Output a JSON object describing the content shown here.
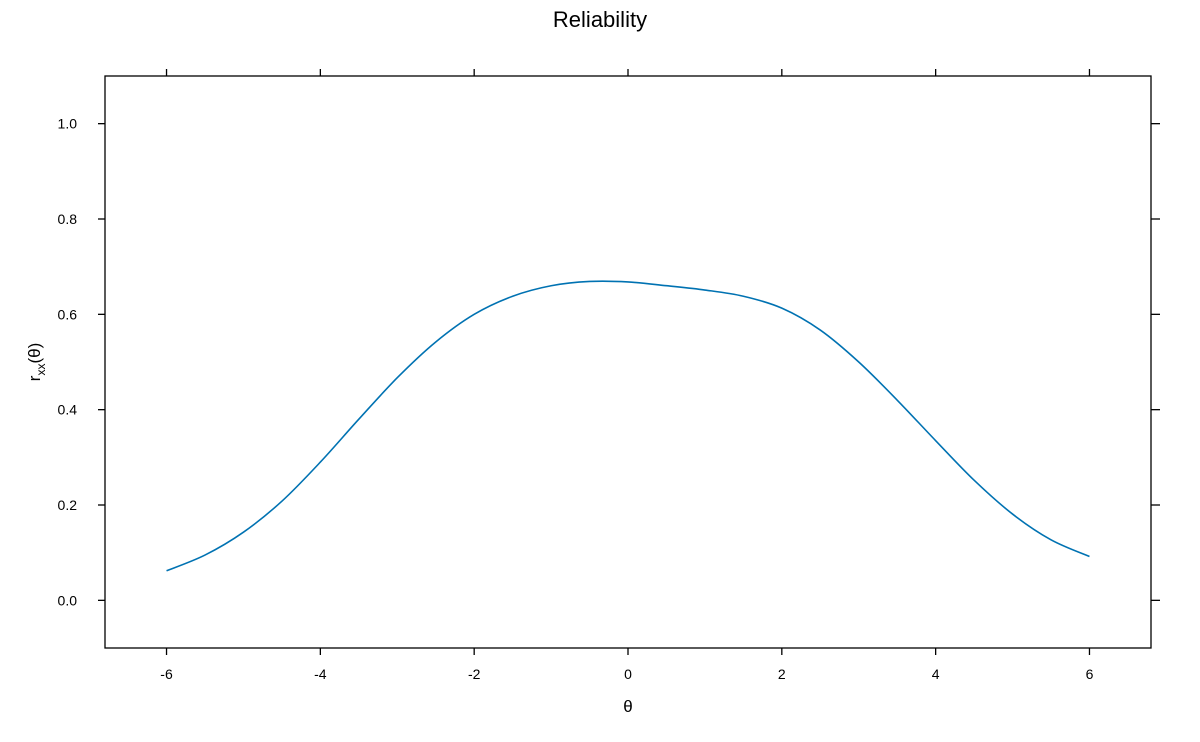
{
  "chart_data": {
    "type": "line",
    "title": "Reliability",
    "xlabel": "θ",
    "ylabel": {
      "main": "r",
      "subscript": "xx",
      "suffix": "(θ)"
    },
    "xlim": [
      -6.8,
      6.8
    ],
    "ylim": [
      -0.1,
      1.1
    ],
    "x_ticks": [
      -6,
      -4,
      -2,
      0,
      2,
      4,
      6
    ],
    "y_ticks": [
      0.0,
      0.2,
      0.4,
      0.6,
      0.8,
      1.0
    ],
    "x_tick_labels": [
      "-6",
      "-4",
      "-2",
      "0",
      "2",
      "4",
      "6"
    ],
    "y_tick_labels": [
      "0.0",
      "0.2",
      "0.4",
      "0.6",
      "0.8",
      "1.0"
    ],
    "grid": false,
    "series": [
      {
        "color": "#0072b2",
        "x": [
          -6,
          -5.5,
          -5,
          -4.5,
          -4,
          -3.5,
          -3,
          -2.5,
          -2,
          -1.5,
          -1,
          -0.5,
          0,
          0.5,
          1,
          1.5,
          2,
          2.5,
          3,
          3.5,
          4,
          4.5,
          5,
          5.5,
          6
        ],
        "y": [
          0.062,
          0.095,
          0.143,
          0.208,
          0.29,
          0.38,
          0.467,
          0.542,
          0.6,
          0.638,
          0.66,
          0.669,
          0.668,
          0.66,
          0.651,
          0.638,
          0.613,
          0.567,
          0.5,
          0.42,
          0.335,
          0.252,
          0.181,
          0.127,
          0.092
        ]
      }
    ]
  }
}
